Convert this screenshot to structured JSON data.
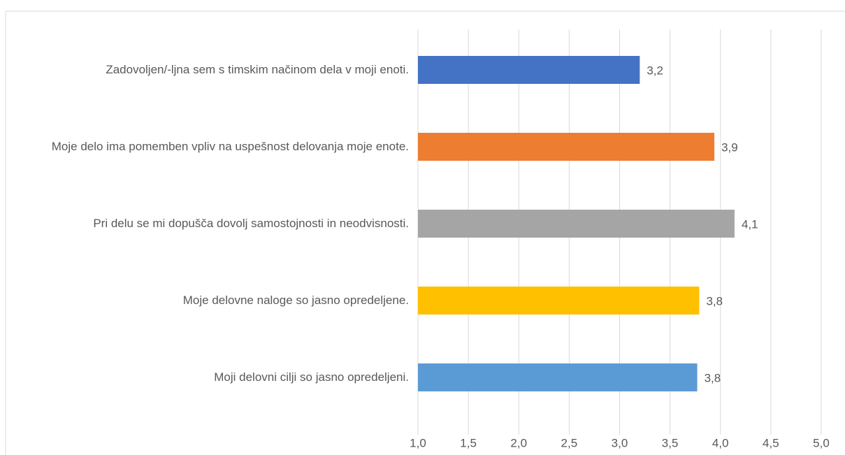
{
  "chart_data": {
    "type": "barh",
    "categories": [
      "Zadovoljen/-ljna sem s timskim načinom dela v moji enoti.",
      "Moje delo ima pomemben vpliv na uspešnost delovanja moje enote.",
      "Pri delu se mi dopušča dovolj samostojnosti in neodvisnosti.",
      "Moje delovne naloge so jasno opredeljene.",
      "Moji delovni cilji so jasno opredeljeni."
    ],
    "values": [
      3.2,
      3.94,
      4.14,
      3.79,
      3.77
    ],
    "value_labels": [
      "3,2",
      "3,9",
      "4,1",
      "3,8",
      "3,8"
    ],
    "colors": [
      "#4472c4",
      "#ed7d31",
      "#a5a5a5",
      "#ffc000",
      "#5b9bd5"
    ],
    "xlim": [
      1.0,
      5.0
    ],
    "xticks": [
      {
        "value": 1.0,
        "label": "1,0"
      },
      {
        "value": 1.5,
        "label": "1,5"
      },
      {
        "value": 2.0,
        "label": "2,0"
      },
      {
        "value": 2.5,
        "label": "2,5"
      },
      {
        "value": 3.0,
        "label": "3,0"
      },
      {
        "value": 3.5,
        "label": "3,5"
      },
      {
        "value": 4.0,
        "label": "4,0"
      },
      {
        "value": 4.5,
        "label": "4,5"
      },
      {
        "value": 5.0,
        "label": "5,0"
      }
    ],
    "grid": true
  }
}
